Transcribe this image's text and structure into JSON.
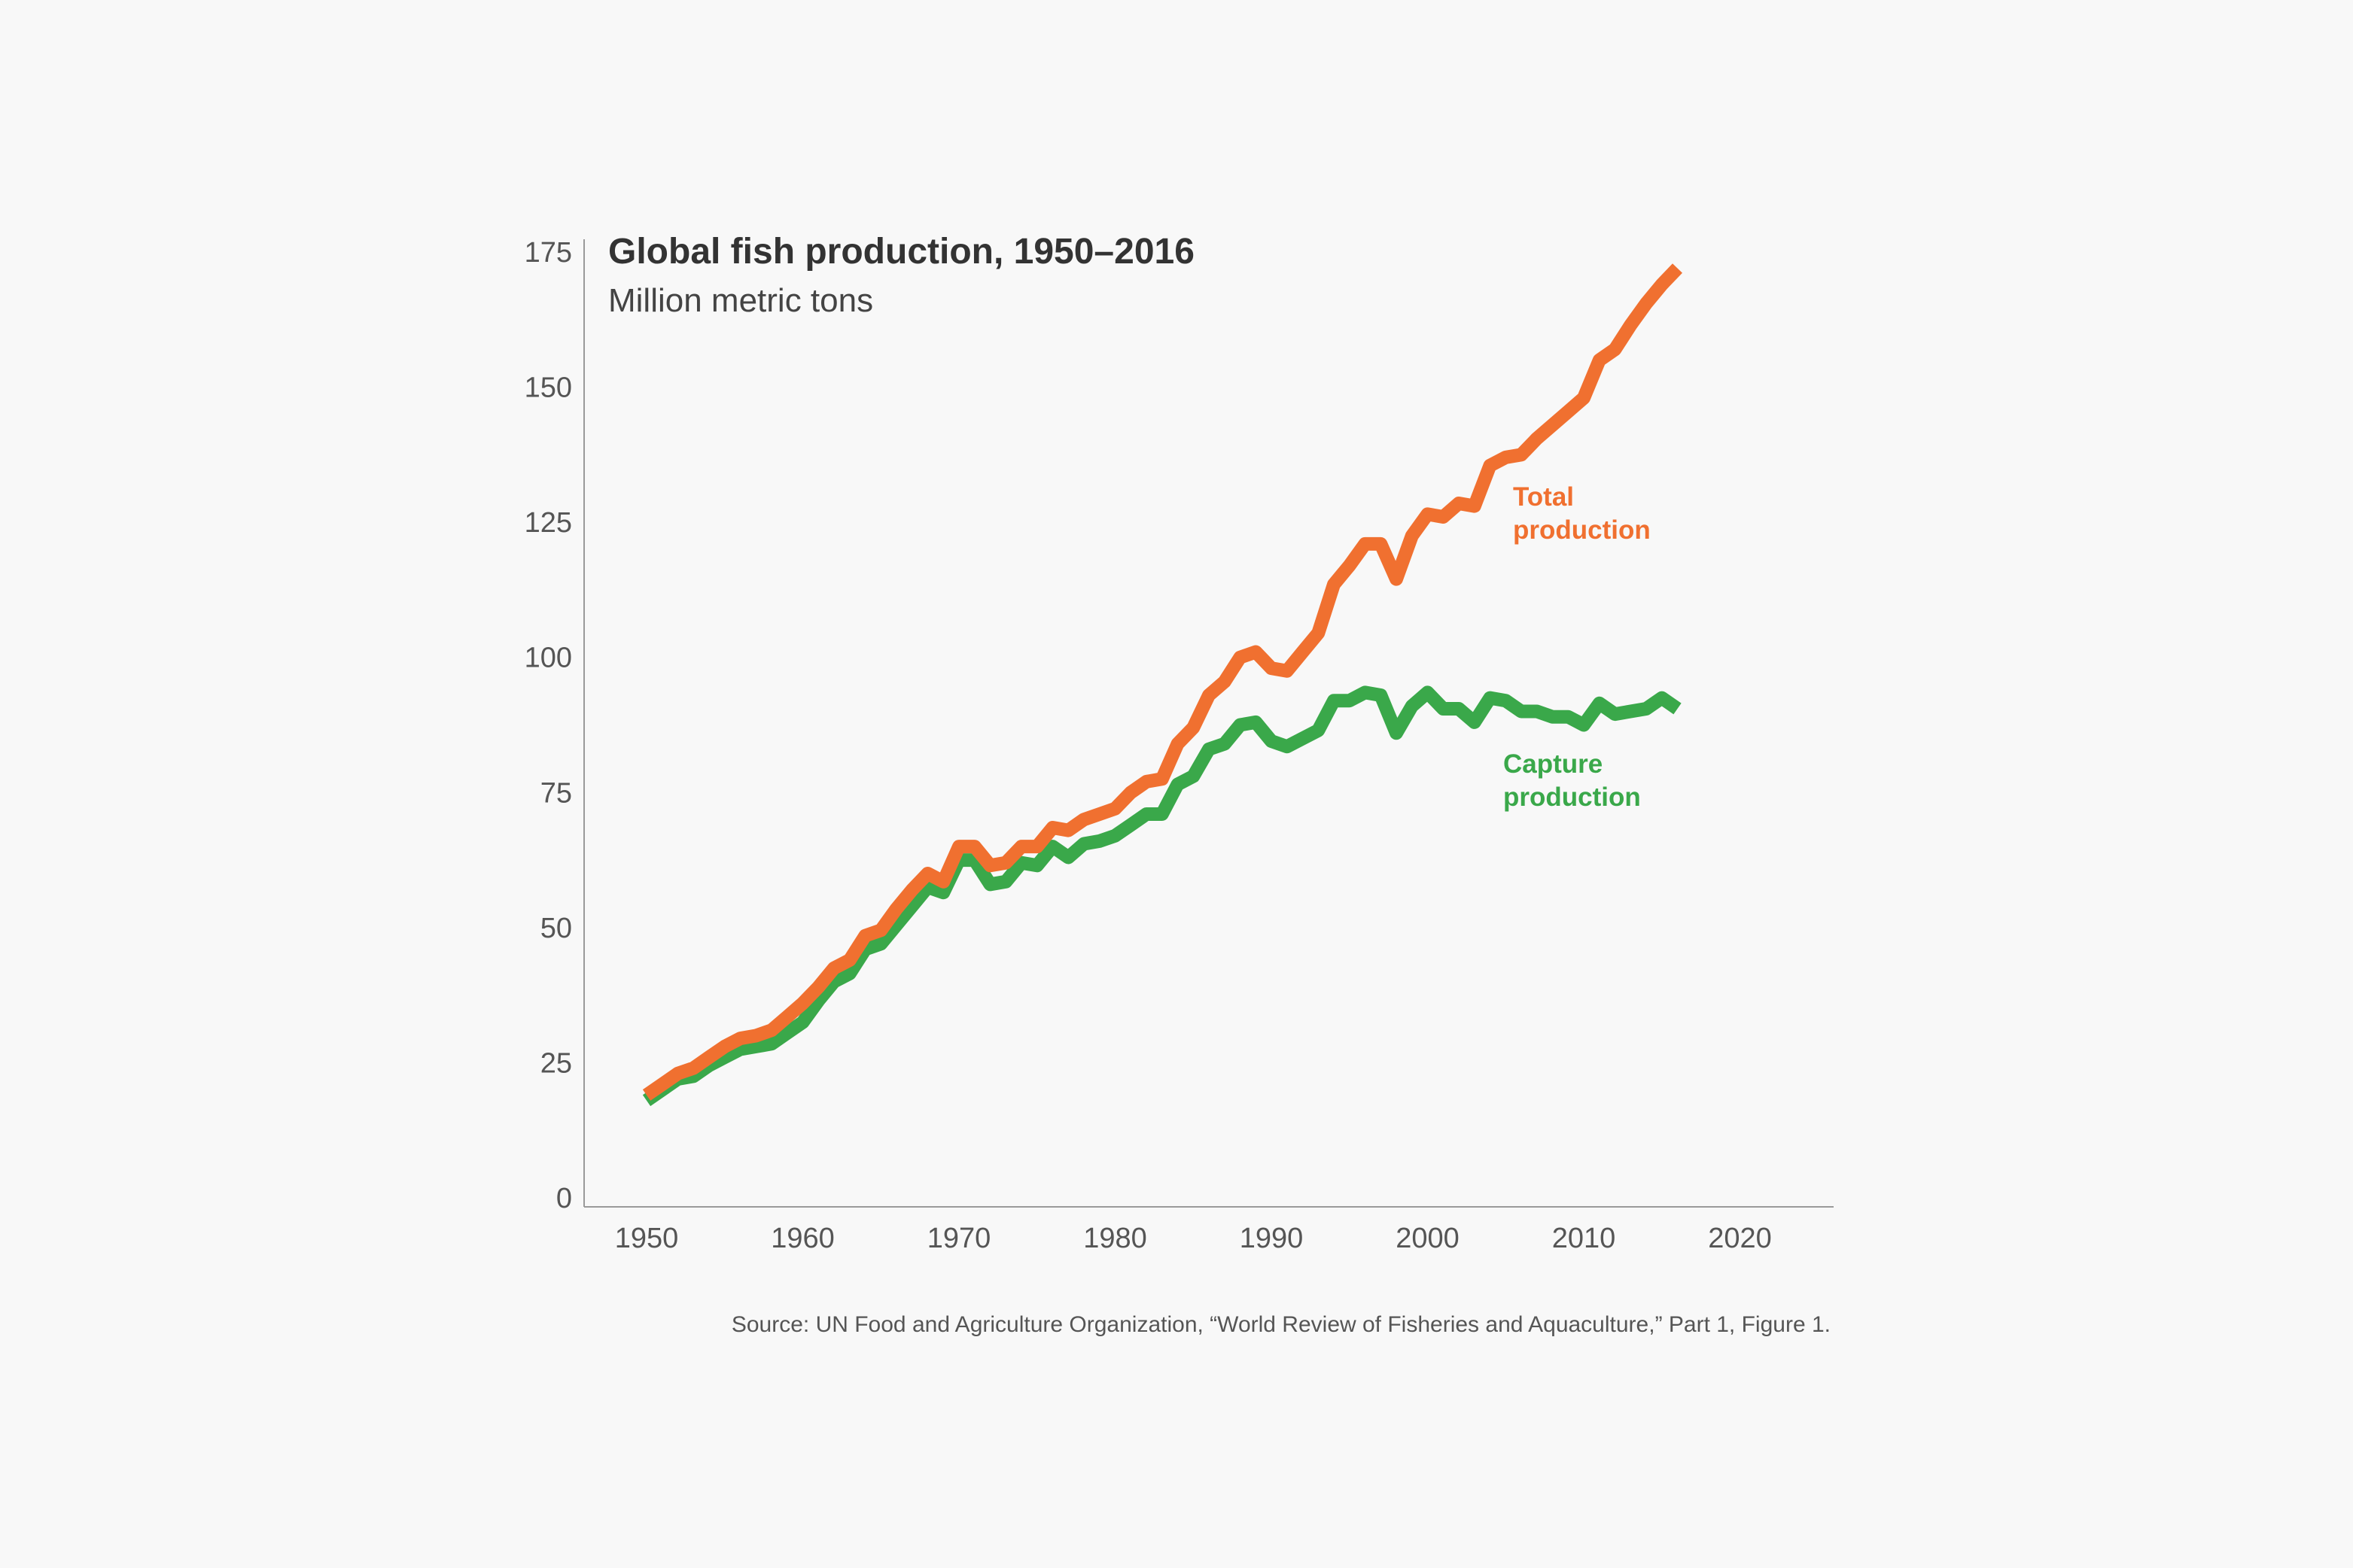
{
  "chart_data": {
    "type": "line",
    "title": "Global fish production, 1950–2016",
    "subtitle": "Million metric tons",
    "source": "Source: UN Food and Agriculture Organization, “World Review of Fisheries and Aquaculture,” Part 1, Figure 1.",
    "xlabel": "",
    "ylabel": "",
    "xlim": [
      1946,
      2026
    ],
    "ylim": [
      0,
      175
    ],
    "x_ticks": [
      "1950",
      "1960",
      "1970",
      "1980",
      "1990",
      "2000",
      "2010",
      "2020"
    ],
    "y_ticks": [
      "0",
      "25",
      "50",
      "75",
      "100",
      "125",
      "150",
      "175"
    ],
    "grid": false,
    "legend": "direct labels",
    "x": [
      1950,
      1951,
      1952,
      1953,
      1954,
      1955,
      1956,
      1957,
      1958,
      1959,
      1960,
      1961,
      1962,
      1963,
      1964,
      1965,
      1966,
      1967,
      1968,
      1969,
      1970,
      1971,
      1972,
      1973,
      1974,
      1975,
      1976,
      1977,
      1978,
      1979,
      1980,
      1981,
      1982,
      1983,
      1984,
      1985,
      1986,
      1987,
      1988,
      1989,
      1990,
      1991,
      1992,
      1993,
      1994,
      1995,
      1996,
      1997,
      1998,
      1999,
      2000,
      2001,
      2002,
      2003,
      2004,
      2005,
      2006,
      2007,
      2008,
      2009,
      2010,
      2011,
      2012,
      2013,
      2014,
      2015,
      2016
    ],
    "series": [
      {
        "name": "Total production",
        "label_lines": [
          "Total",
          "production"
        ],
        "color": "#f07030",
        "values": [
          19,
          21,
          23,
          24,
          26,
          28,
          29.5,
          30,
          31,
          33.5,
          36,
          39,
          42.5,
          44,
          48.5,
          49.5,
          53.5,
          57,
          60,
          58.5,
          65,
          65,
          61.5,
          62,
          65,
          65,
          68.5,
          68,
          70,
          71,
          72,
          75,
          77,
          77.5,
          84,
          87,
          93,
          95.5,
          100,
          101,
          98,
          97.5,
          101,
          104.5,
          113.5,
          117,
          121,
          121,
          114.5,
          122.5,
          126.5,
          126,
          128.5,
          128,
          135.5,
          137,
          137.5,
          140.5,
          143,
          145.5,
          148,
          155,
          157,
          161.5,
          165.5,
          169,
          172
        ]
      },
      {
        "name": "Capture production",
        "label_lines": [
          "Capture",
          "production"
        ],
        "color": "#3aa84a",
        "values": [
          18,
          20,
          22,
          22.5,
          24.5,
          26,
          27.5,
          28,
          28.5,
          30.5,
          32.5,
          36.5,
          40,
          41.5,
          46,
          47,
          50.5,
          54,
          57.5,
          56.5,
          62.5,
          62.5,
          58,
          58.5,
          62,
          61.5,
          65,
          63,
          65.5,
          66,
          67,
          69,
          71,
          71,
          76.5,
          78,
          83,
          84,
          87.5,
          88,
          84.5,
          83.5,
          85,
          86.5,
          92,
          92,
          93.5,
          93,
          86,
          91,
          93.5,
          90.5,
          90.5,
          88,
          92.5,
          92,
          90,
          90,
          89,
          89,
          87.5,
          91.5,
          89.5,
          90,
          90.5,
          92.5,
          90.5
        ]
      }
    ]
  }
}
